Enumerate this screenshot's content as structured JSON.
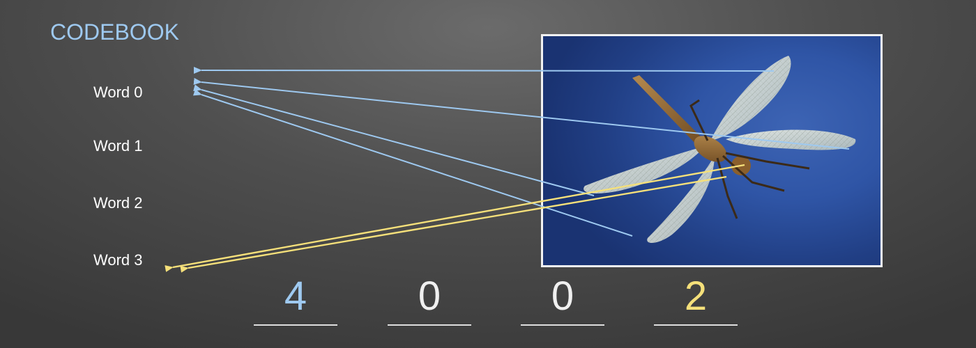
{
  "codebook": {
    "title": "CODEBOOK",
    "words": [
      "Word 0",
      "Word 1",
      "Word 2",
      "Word 3"
    ]
  },
  "histogram": {
    "values": [
      "4",
      "0",
      "0",
      "2"
    ]
  },
  "colors": {
    "background": "#4f4f4f",
    "title": "#9ec9f0",
    "word_label": "#ffffff",
    "arrow_blue": "#9ec9f0",
    "arrow_yellow": "#f5e07a",
    "count_blue": "#9ec9f0",
    "count_white": "#f0f0f0",
    "count_yellow": "#f5e07a",
    "photo_border": "#f2f2f2",
    "photo_bg": "#2f55a6"
  },
  "image": {
    "subject": "dragonfly-photo"
  }
}
